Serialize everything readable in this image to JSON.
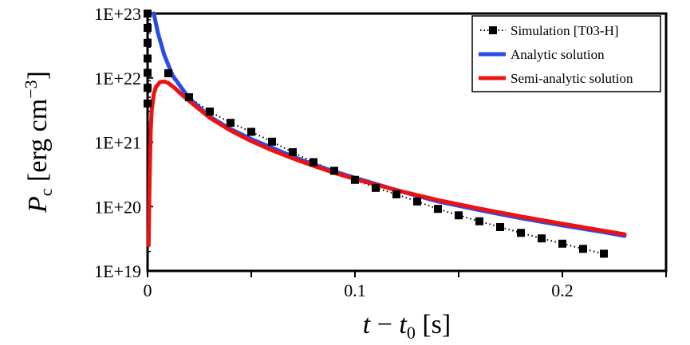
{
  "chart_data": {
    "type": "scatter",
    "xlabel": "t − t0 [s]",
    "ylabel": "Pc [erg cm−3]",
    "xlim": [
      0,
      0.25
    ],
    "ylim": [
      1e+19,
      1e+23
    ],
    "yscale": "log",
    "grid": false,
    "legend_position": "top-right",
    "x_ticks": [
      {
        "value": 0,
        "label": "0"
      },
      {
        "value": 0.1,
        "label": "0.1"
      },
      {
        "value": 0.2,
        "label": "0.2"
      }
    ],
    "y_ticks": [
      {
        "value": 1e+19,
        "label": "1E+19"
      },
      {
        "value": 1e+20,
        "label": "1E+20"
      },
      {
        "value": 1e+21,
        "label": "1E+21"
      },
      {
        "value": 1e+22,
        "label": "1E+22"
      },
      {
        "value": 1e+23,
        "label": "1E+23"
      }
    ],
    "series": [
      {
        "name": "Simulation [T03-H]",
        "style": "markers-dotted",
        "color": "#000000",
        "points": [
          [
            0.0,
            1e+23
          ],
          [
            0.0,
            6e+22
          ],
          [
            0.0,
            3.5e+22
          ],
          [
            0.0,
            2e+22
          ],
          [
            0.0,
            1.2e+22
          ],
          [
            0.0,
            7e+21
          ],
          [
            0.0,
            4e+21
          ],
          [
            0.01,
            1.18e+22
          ],
          [
            0.02,
            5e+21
          ],
          [
            0.03,
            3e+21
          ],
          [
            0.04,
            2e+21
          ],
          [
            0.05,
            1.45e+21
          ],
          [
            0.06,
            1.02e+21
          ],
          [
            0.07,
            7e+20
          ],
          [
            0.08,
            4.9e+20
          ],
          [
            0.09,
            3.6e+20
          ],
          [
            0.1,
            2.6e+20
          ],
          [
            0.11,
            1.95e+20
          ],
          [
            0.12,
            1.55e+20
          ],
          [
            0.13,
            1.2e+20
          ],
          [
            0.14,
            9.2e+19
          ],
          [
            0.15,
            7.3e+19
          ],
          [
            0.16,
            5.9e+19
          ],
          [
            0.17,
            4.8e+19
          ],
          [
            0.18,
            3.9e+19
          ],
          [
            0.19,
            3.2e+19
          ],
          [
            0.2,
            2.65e+19
          ],
          [
            0.21,
            2.2e+19
          ],
          [
            0.22,
            1.85e+19
          ]
        ]
      },
      {
        "name": "Analytic solution",
        "style": "line",
        "color": "#2a4be8",
        "points": [
          [
            0.003,
            1e+23
          ],
          [
            0.005,
            5e+22
          ],
          [
            0.008,
            2.3e+22
          ],
          [
            0.012,
            1.1e+22
          ],
          [
            0.02,
            4.8e+21
          ],
          [
            0.03,
            2.5e+21
          ],
          [
            0.04,
            1.6e+21
          ],
          [
            0.05,
            1.12e+21
          ],
          [
            0.06,
            8.2e+20
          ],
          [
            0.07,
            6e+20
          ],
          [
            0.08,
            4.5e+20
          ],
          [
            0.09,
            3.5e+20
          ],
          [
            0.1,
            2.8e+20
          ],
          [
            0.12,
            1.8e+20
          ],
          [
            0.14,
            1.2e+20
          ],
          [
            0.16,
            8.8e+19
          ],
          [
            0.18,
            6.6e+19
          ],
          [
            0.2,
            5.1e+19
          ],
          [
            0.22,
            4e+19
          ],
          [
            0.23,
            3.5e+19
          ]
        ]
      },
      {
        "name": "Semi-analytic solution",
        "style": "line",
        "color": "#ee1111",
        "points": [
          [
            0.0005,
            2.5e+19
          ],
          [
            0.001,
            3e+20
          ],
          [
            0.0015,
            1.5e+21
          ],
          [
            0.002,
            3.2e+21
          ],
          [
            0.003,
            5.6e+21
          ],
          [
            0.004,
            7.2e+21
          ],
          [
            0.006,
            8.6e+21
          ],
          [
            0.008,
            8.8e+21
          ],
          [
            0.01,
            8.3e+21
          ],
          [
            0.013,
            7e+21
          ],
          [
            0.017,
            5.3e+21
          ],
          [
            0.02,
            4.4e+21
          ],
          [
            0.03,
            2.4e+21
          ],
          [
            0.04,
            1.52e+21
          ],
          [
            0.05,
            1.04e+21
          ],
          [
            0.06,
            7.5e+20
          ],
          [
            0.07,
            5.6e+20
          ],
          [
            0.08,
            4.3e+20
          ],
          [
            0.09,
            3.35e+20
          ],
          [
            0.1,
            2.68e+20
          ],
          [
            0.12,
            1.8e+20
          ],
          [
            0.14,
            1.26e+20
          ],
          [
            0.16,
            9.3e+19
          ],
          [
            0.18,
            7e+19
          ],
          [
            0.2,
            5.4e+19
          ],
          [
            0.22,
            4.2e+19
          ],
          [
            0.23,
            3.7e+19
          ]
        ]
      }
    ]
  }
}
